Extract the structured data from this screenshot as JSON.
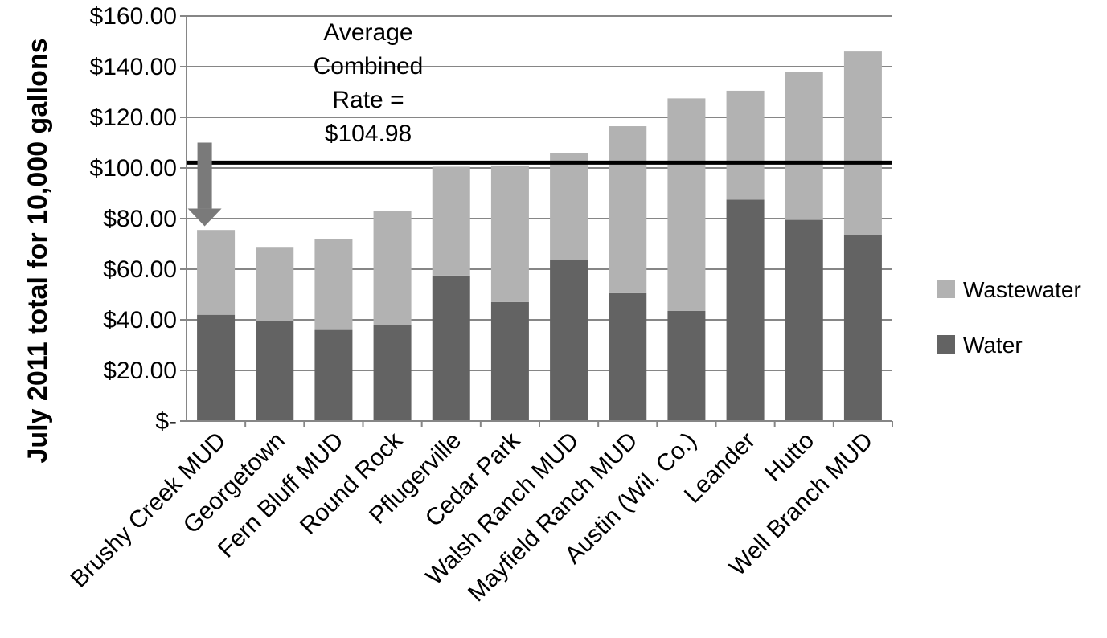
{
  "chart_data": {
    "type": "bar",
    "stacked": true,
    "title": "",
    "xlabel": "",
    "ylabel": "July 2011  total for 10,000 gallons",
    "ylim": [
      0,
      160
    ],
    "yticks": [
      0,
      20,
      40,
      60,
      80,
      100,
      120,
      140,
      160
    ],
    "ytick_labels": [
      "$-",
      "$20.00",
      "$40.00",
      "$60.00",
      "$80.00",
      "$100.00",
      "$120.00",
      "$140.00",
      "$160.00"
    ],
    "grid": true,
    "legend_position": "right",
    "categories": [
      "Brushy Creek MUD",
      "Georgetown",
      "Fern Bluff MUD",
      "Round Rock",
      "Pflugerville",
      "Cedar Park",
      "Walsh Ranch MUD",
      "Mayfield Ranch MUD",
      "Austin (Wil. Co.)",
      "Leander",
      "Hutto",
      "Well Branch MUD"
    ],
    "series": [
      {
        "name": "Water",
        "color": "#636363",
        "values": [
          42,
          39.5,
          36,
          38,
          57.5,
          47,
          63.5,
          50.5,
          43.5,
          87.5,
          79.5,
          73.5
        ]
      },
      {
        "name": "Wastewater",
        "color": "#b2b2b2",
        "values": [
          33.5,
          29,
          36,
          45,
          43,
          54,
          42.5,
          66,
          84,
          43,
          58.5,
          72.5
        ]
      }
    ],
    "legend_order": [
      "Wastewater",
      "Water"
    ],
    "reference_line": {
      "value": 104.98
    },
    "annotation": {
      "lines": [
        "Average",
        "Combined",
        "Rate =",
        "$104.98"
      ]
    },
    "arrow": {
      "category_index": 0,
      "from_value": 110,
      "to_value": 77,
      "color": "#7a7a7a"
    }
  }
}
